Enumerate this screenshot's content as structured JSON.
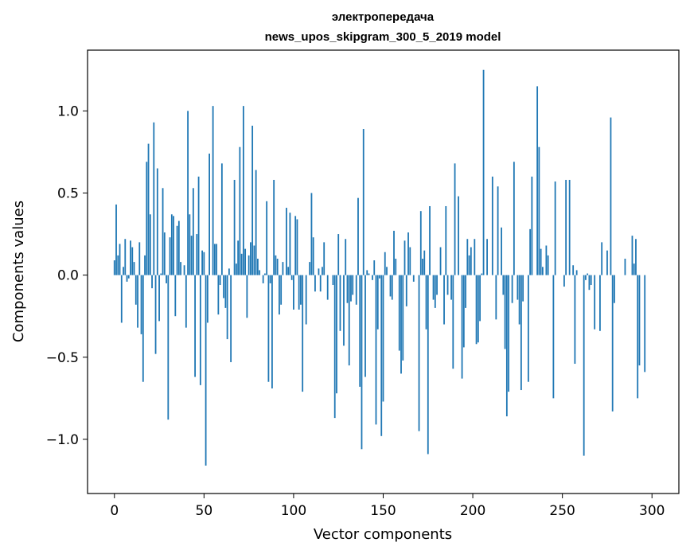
{
  "chart_data": {
    "type": "bar",
    "title_line1": "электропередача",
    "title_line2": "news_upos_skipgram_300_5_2019 model",
    "xlabel": "Vector components",
    "ylabel": "Components values",
    "xlim": [
      -15,
      315
    ],
    "ylim": [
      -1.33,
      1.37
    ],
    "xticks": [
      0,
      50,
      100,
      150,
      200,
      250,
      300
    ],
    "xtick_labels": [
      "0",
      "50",
      "100",
      "150",
      "200",
      "250",
      "300"
    ],
    "yticks": [
      -1.0,
      -0.5,
      0.0,
      0.5,
      1.0
    ],
    "ytick_labels": [
      "−1.0",
      "−0.5",
      "0.0",
      "0.5",
      "1.0"
    ],
    "bar_color": "#1f77b4",
    "values": [
      0.09,
      0.43,
      0.12,
      0.19,
      -0.29,
      0.05,
      0.22,
      -0.04,
      -0.02,
      0.21,
      0.17,
      0.08,
      -0.18,
      -0.32,
      0.2,
      -0.36,
      -0.65,
      0.12,
      0.69,
      0.8,
      0.37,
      -0.08,
      0.93,
      -0.48,
      0.65,
      -0.28,
      0.01,
      0.53,
      0.26,
      -0.05,
      -0.88,
      0.23,
      0.37,
      0.36,
      -0.25,
      0.3,
      0.33,
      0.08,
      0.0,
      0.06,
      -0.32,
      1.0,
      0.37,
      0.24,
      0.53,
      -0.62,
      0.25,
      0.6,
      -0.67,
      0.15,
      0.14,
      -1.16,
      -0.29,
      0.74,
      0.0,
      1.03,
      0.19,
      0.19,
      -0.24,
      -0.06,
      0.68,
      -0.14,
      -0.2,
      -0.39,
      0.04,
      -0.53,
      0.0,
      0.58,
      0.07,
      0.21,
      0.78,
      0.13,
      1.03,
      0.16,
      -0.26,
      0.12,
      0.2,
      0.91,
      0.18,
      0.64,
      0.1,
      0.03,
      0.0,
      -0.05,
      0.01,
      0.45,
      -0.65,
      -0.05,
      -0.69,
      0.58,
      0.12,
      0.1,
      -0.24,
      -0.18,
      0.08,
      0.0,
      0.41,
      0.05,
      0.38,
      -0.03,
      -0.21,
      0.36,
      0.34,
      -0.21,
      -0.18,
      -0.71,
      0.0,
      -0.3,
      0.0,
      0.08,
      0.5,
      0.23,
      -0.1,
      0.0,
      0.04,
      -0.1,
      0.05,
      0.2,
      0.0,
      -0.15,
      0.0,
      0.0,
      -0.06,
      -0.87,
      -0.72,
      0.25,
      -0.34,
      0.0,
      -0.43,
      0.22,
      -0.17,
      -0.55,
      -0.16,
      -0.12,
      0.0,
      -0.18,
      0.47,
      -0.68,
      -1.06,
      0.89,
      -0.62,
      0.03,
      0.01,
      0.0,
      -0.03,
      0.09,
      -0.91,
      -0.33,
      -0.02,
      -0.98,
      -0.77,
      0.14,
      0.05,
      0.0,
      -0.13,
      -0.15,
      0.27,
      0.1,
      0.0,
      -0.46,
      -0.6,
      -0.52,
      0.21,
      -0.19,
      0.26,
      0.17,
      0.0,
      -0.04,
      0.0,
      0.0,
      -0.95,
      0.39,
      0.1,
      0.15,
      -0.33,
      -1.09,
      0.42,
      0.0,
      -0.15,
      -0.2,
      -0.12,
      0.0,
      0.17,
      0.0,
      -0.3,
      0.42,
      -0.12,
      0.0,
      -0.15,
      -0.57,
      0.68,
      0.0,
      0.48,
      0.0,
      -0.63,
      -0.44,
      -0.2,
      0.22,
      0.12,
      0.17,
      0.0,
      0.22,
      -0.42,
      -0.41,
      -0.28,
      0.01,
      1.25,
      0.0,
      0.22,
      0.0,
      0.0,
      0.6,
      0.0,
      -0.27,
      0.54,
      0.0,
      0.29,
      -0.12,
      -0.45,
      -0.86,
      -0.71,
      0.0,
      -0.17,
      0.69,
      0.0,
      -0.15,
      -0.3,
      -0.7,
      -0.16,
      0.0,
      0.0,
      -0.65,
      0.28,
      0.6,
      0.0,
      0.0,
      1.15,
      0.78,
      0.16,
      0.05,
      0.0,
      0.18,
      0.12,
      0.0,
      0.0,
      -0.75,
      0.57,
      0.0,
      0.0,
      0.0,
      0.0,
      -0.07,
      0.58,
      0.0,
      0.58,
      0.0,
      0.06,
      -0.54,
      0.03,
      0.0,
      0.0,
      0.0,
      -1.1,
      -0.03,
      0.01,
      -0.09,
      -0.06,
      0.0,
      -0.33,
      0.0,
      0.0,
      -0.34,
      0.2,
      0.0,
      0.0,
      0.15,
      0.0,
      0.96,
      -0.83,
      -0.17,
      0.0,
      0.0,
      0.0,
      0.0,
      0.0,
      0.1,
      0.0,
      0.0,
      0.0,
      0.24,
      0.07,
      0.22,
      -0.75,
      -0.55,
      0.0,
      0.0,
      -0.59,
      0.0
    ]
  }
}
